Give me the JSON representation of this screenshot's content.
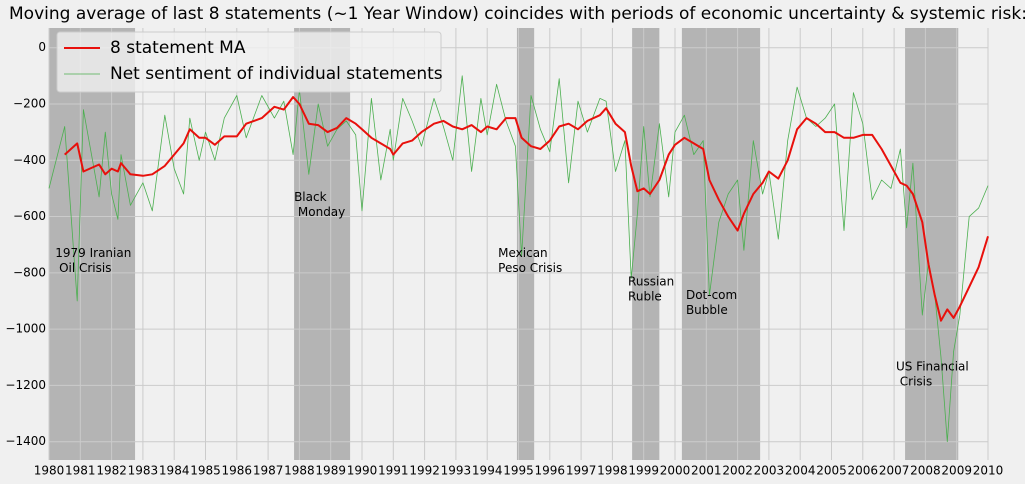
{
  "chart_data": {
    "type": "line",
    "title": "Moving average of last 8 statements (~1 Year Window) coincides with periods of economic uncertainty & systemic risk:",
    "x": [
      1980.0,
      1980.5,
      1980.9,
      1981.1,
      1981.6,
      1981.8,
      1982.0,
      1982.2,
      1982.3,
      1982.6,
      1983.0,
      1983.3,
      1983.7,
      1984.0,
      1984.3,
      1984.5,
      1984.8,
      1985.0,
      1985.3,
      1985.6,
      1986.0,
      1986.3,
      1986.8,
      1987.2,
      1987.5,
      1987.8,
      1988.0,
      1988.3,
      1988.6,
      1988.9,
      1989.2,
      1989.5,
      1989.8,
      1990.0,
      1990.3,
      1990.6,
      1990.9,
      1991.0,
      1991.3,
      1991.6,
      1991.9,
      1992.3,
      1992.6,
      1992.9,
      1993.2,
      1993.5,
      1993.8,
      1994.0,
      1994.3,
      1994.6,
      1994.9,
      1995.1,
      1995.4,
      1995.7,
      1996.0,
      1996.3,
      1996.6,
      1996.9,
      1997.2,
      1997.6,
      1997.8,
      1998.1,
      1998.4,
      1998.6,
      1998.8,
      1999.0,
      1999.2,
      1999.5,
      1999.8,
      2000.0,
      2000.3,
      2000.6,
      2000.9,
      2001.1,
      2001.4,
      2001.7,
      2002.0,
      2002.2,
      2002.5,
      2002.8,
      2003.0,
      2003.3,
      2003.6,
      2003.9,
      2004.2,
      2004.5,
      2004.8,
      2005.1,
      2005.4,
      2005.7,
      2006.0,
      2006.3,
      2006.6,
      2006.9,
      2007.2,
      2007.4,
      2007.6,
      2007.9,
      2008.1,
      2008.3,
      2008.5,
      2008.7,
      2008.9,
      2009.1,
      2009.4,
      2009.7,
      2010.0
    ],
    "series": [
      {
        "name": "8 statement MA",
        "color": "#e8100c",
        "width": 2,
        "values": [
          null,
          -380,
          -340,
          -440,
          -415,
          -450,
          -430,
          -440,
          -410,
          -450,
          -455,
          -450,
          -420,
          -380,
          -340,
          -290,
          -320,
          -320,
          -345,
          -315,
          -315,
          -270,
          -250,
          -210,
          -220,
          -175,
          -200,
          -270,
          -275,
          -300,
          -285,
          -250,
          -270,
          -290,
          -320,
          -340,
          -360,
          -380,
          -340,
          -330,
          -300,
          -270,
          -260,
          -280,
          -290,
          -275,
          -300,
          -280,
          -290,
          -250,
          -250,
          -320,
          -350,
          -360,
          -330,
          -280,
          -270,
          -290,
          -260,
          -240,
          -215,
          -270,
          -300,
          -420,
          -510,
          -500,
          -520,
          -470,
          -380,
          -345,
          -320,
          -340,
          -360,
          -470,
          -540,
          -600,
          -650,
          -590,
          -520,
          -480,
          -440,
          -465,
          -400,
          -290,
          -250,
          -270,
          -300,
          -300,
          -320,
          -320,
          -310,
          -310,
          -360,
          -420,
          -480,
          -490,
          -520,
          -620,
          -770,
          -880,
          -970,
          -930,
          -960,
          -920,
          -850,
          -780,
          -670
        ]
      },
      {
        "name": "Net sentiment of individual statements",
        "color": "#4caf50",
        "width": 0.8,
        "values": [
          -500,
          -280,
          -900,
          -220,
          -530,
          -300,
          -520,
          -610,
          -380,
          -560,
          -480,
          -580,
          -240,
          -430,
          -520,
          -250,
          -400,
          -300,
          -400,
          -250,
          -170,
          -320,
          -170,
          -250,
          -190,
          -380,
          -150,
          -450,
          -200,
          -350,
          -290,
          -260,
          -310,
          -580,
          -180,
          -470,
          -290,
          -400,
          -180,
          -260,
          -350,
          -180,
          -280,
          -400,
          -100,
          -440,
          -180,
          -310,
          -130,
          -260,
          -350,
          -740,
          -170,
          -290,
          -370,
          -110,
          -480,
          -190,
          -300,
          -180,
          -190,
          -440,
          -330,
          -820,
          -590,
          -280,
          -530,
          -270,
          -530,
          -300,
          -240,
          -380,
          -330,
          -880,
          -620,
          -520,
          -470,
          -720,
          -330,
          -520,
          -440,
          -680,
          -330,
          -140,
          -250,
          -280,
          -250,
          -200,
          -650,
          -160,
          -270,
          -540,
          -470,
          -500,
          -360,
          -640,
          -410,
          -950,
          -760,
          -880,
          -1100,
          -1400,
          -1080,
          -950,
          -600,
          -570,
          -490
        ]
      }
    ],
    "xlim": [
      1980,
      2010
    ],
    "xticks": [
      1980,
      1981,
      1982,
      1983,
      1984,
      1985,
      1986,
      1987,
      1988,
      1989,
      1990,
      1991,
      1992,
      1993,
      1994,
      1995,
      1996,
      1997,
      1998,
      1999,
      2000,
      2001,
      2002,
      2003,
      2004,
      2005,
      2006,
      2007,
      2008,
      2009,
      2010
    ],
    "ylim": [
      -1465,
      70
    ],
    "yticks": [
      0,
      {
        "value": -200,
        "label": "−200"
      },
      {
        "value": -400,
        "label": "−400"
      },
      {
        "value": -600,
        "label": "−600"
      },
      {
        "value": -800,
        "label": "−800"
      },
      {
        "value": -1000,
        "label": "−1000"
      },
      {
        "value": -1200,
        "label": "−1200"
      },
      {
        "value": -1400,
        "label": "−1400"
      }
    ],
    "grid": true,
    "legend": "upper-left",
    "span_color": "#b4b4b4",
    "spans": [
      {
        "start": 1980,
        "end": 1982.75
      },
      {
        "start": 1987.83,
        "end": 1989.62
      },
      {
        "start": 1994.95,
        "end": 1995.5
      },
      {
        "start": 1998.63,
        "end": 1999.5
      },
      {
        "start": 2000.22,
        "end": 2002.72
      },
      {
        "start": 2007.35,
        "end": 2009.05
      }
    ],
    "annotations": [
      {
        "lines": [
          "1979 Iranian",
          " Oil Crisis"
        ],
        "x": 1980.2,
        "y": -732
      },
      {
        "lines": [
          "Black",
          " Monday"
        ],
        "x": 1987.83,
        "y": -533
      },
      {
        "lines": [
          "Mexican",
          "Peso Crisis"
        ],
        "x": 1994.35,
        "y": -732
      },
      {
        "lines": [
          "Russian",
          "Ruble"
        ],
        "x": 1998.5,
        "y": -832
      },
      {
        "lines": [
          "Dot-com",
          "Bubble"
        ],
        "x": 2000.35,
        "y": -881
      },
      {
        "lines": [
          "US Financial",
          " Crisis"
        ],
        "x": 2007.06,
        "y": -1134
      }
    ]
  }
}
